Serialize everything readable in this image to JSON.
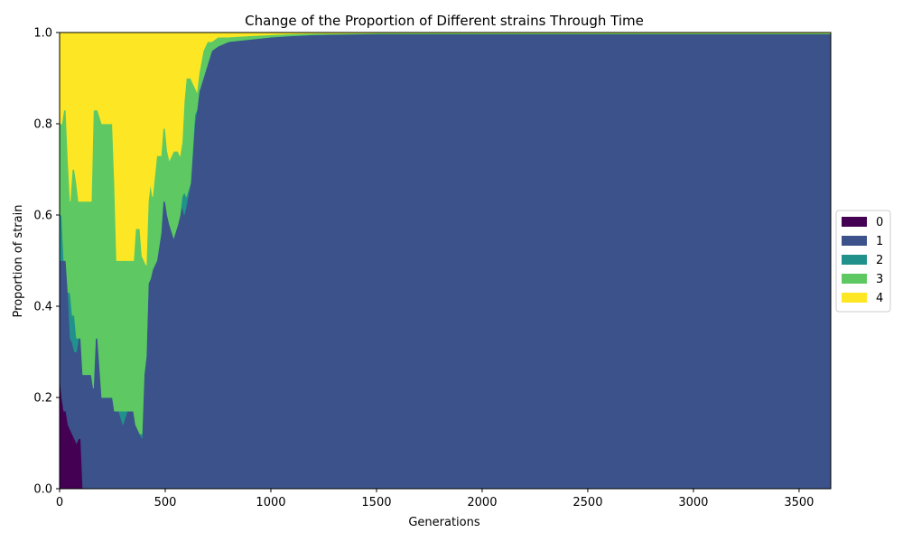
{
  "chart_data": {
    "type": "area",
    "title": "Change of the Proportion of Different strains Through Time",
    "xlabel": "Generations",
    "ylabel": "Proportion of strain",
    "xlim": [
      0,
      3650
    ],
    "ylim": [
      0,
      1.0
    ],
    "xticks": [
      0,
      500,
      1000,
      1500,
      2000,
      2500,
      3000,
      3500
    ],
    "yticks": [
      0.0,
      0.2,
      0.4,
      0.6,
      0.8,
      1.0
    ],
    "ytick_labels": [
      "0.0",
      "0.2",
      "0.4",
      "0.6",
      "0.8",
      "1.0"
    ],
    "grid": false,
    "stacked": true,
    "legend_position": "right",
    "x": [
      0,
      10,
      20,
      30,
      40,
      50,
      60,
      70,
      80,
      90,
      100,
      110,
      150,
      160,
      170,
      180,
      200,
      250,
      260,
      270,
      280,
      300,
      320,
      350,
      360,
      370,
      380,
      390,
      400,
      410,
      420,
      430,
      440,
      460,
      480,
      490,
      500,
      510,
      520,
      540,
      560,
      570,
      580,
      590,
      600,
      620,
      640,
      650,
      660,
      680,
      700,
      720,
      750,
      800,
      900,
      1000,
      1100,
      1200,
      1300,
      1500,
      1600,
      1800,
      2000,
      2500,
      3000,
      3500,
      3650
    ],
    "series": [
      {
        "name": "0",
        "color": "#440154",
        "values": [
          0.25,
          0.2,
          0.17,
          0.17,
          0.14,
          0.13,
          0.12,
          0.11,
          0.1,
          0.11,
          0.11,
          0,
          0,
          0,
          0,
          0,
          0,
          0,
          0,
          0,
          0,
          0,
          0,
          0,
          0,
          0,
          0,
          0,
          0,
          0,
          0,
          0,
          0,
          0,
          0,
          0,
          0,
          0,
          0,
          0,
          0,
          0,
          0,
          0,
          0,
          0,
          0,
          0,
          0,
          0,
          0,
          0,
          0,
          0,
          0,
          0,
          0,
          0,
          0,
          0,
          0,
          0,
          0,
          0,
          0,
          0,
          0
        ]
      },
      {
        "name": "1",
        "color": "#3b528b",
        "values": [
          0.25,
          0.3,
          0.33,
          0.33,
          0.29,
          0.2,
          0.2,
          0.19,
          0.2,
          0.22,
          0.22,
          0.25,
          0.25,
          0.22,
          0.33,
          0.33,
          0.2,
          0.2,
          0.17,
          0.17,
          0.17,
          0.14,
          0.17,
          0.17,
          0.14,
          0.13,
          0.12,
          0.11,
          0.25,
          0.29,
          0.45,
          0.46,
          0.48,
          0.5,
          0.56,
          0.63,
          0.63,
          0.6,
          0.58,
          0.55,
          0.58,
          0.6,
          0.62,
          0.6,
          0.62,
          0.67,
          0.8,
          0.83,
          0.87,
          0.9,
          0.93,
          0.96,
          0.97,
          0.98,
          0.985,
          0.99,
          0.993,
          0.995,
          0.996,
          0.997,
          0.997,
          0.997,
          0.997,
          0.997,
          0.997,
          0.997,
          0.997
        ]
      },
      {
        "name": "2",
        "color": "#21918c",
        "values": [
          0.1,
          0.1,
          0.0,
          0.0,
          0.0,
          0.1,
          0.06,
          0.08,
          0.03,
          0.0,
          0.0,
          0.0,
          0.0,
          0.0,
          0.0,
          0.0,
          0.0,
          0.0,
          0.0,
          0.0,
          0.0,
          0.03,
          0.0,
          0.0,
          0.0,
          0.0,
          0.0,
          0.01,
          0.0,
          0.0,
          0.0,
          0.0,
          0.0,
          0.0,
          0.0,
          0.0,
          0.0,
          0.0,
          0.0,
          0.0,
          0.0,
          0.0,
          0.02,
          0.05,
          0.02,
          0.0,
          0.02,
          0.0,
          0.0,
          0.0,
          0.0,
          0.0,
          0.0,
          0.0,
          0.0,
          0.0,
          0.0,
          0.0,
          0.0,
          0.0,
          0.0,
          0.0,
          0.0,
          0.0,
          0.0,
          0.0,
          0.0
        ]
      },
      {
        "name": "3",
        "color": "#5ec962",
        "values": [
          0.2,
          0.2,
          0.33,
          0.33,
          0.29,
          0.2,
          0.32,
          0.32,
          0.34,
          0.3,
          0.3,
          0.38,
          0.38,
          0.61,
          0.5,
          0.5,
          0.6,
          0.6,
          0.5,
          0.33,
          0.33,
          0.33,
          0.33,
          0.33,
          0.43,
          0.44,
          0.45,
          0.39,
          0.25,
          0.2,
          0.18,
          0.21,
          0.16,
          0.23,
          0.17,
          0.16,
          0.16,
          0.14,
          0.14,
          0.19,
          0.16,
          0.13,
          0.12,
          0.2,
          0.26,
          0.23,
          0.06,
          0.04,
          0.04,
          0.06,
          0.05,
          0.02,
          0.02,
          0.01,
          0.008,
          0.005,
          0.004,
          0.003,
          0.002,
          0.002,
          0.002,
          0.002,
          0.002,
          0.002,
          0.002,
          0.002,
          0.002
        ]
      },
      {
        "name": "4",
        "color": "#fde725",
        "values": [
          0.2,
          0.2,
          0.17,
          0.17,
          0.28,
          0.37,
          0.3,
          0.3,
          0.33,
          0.37,
          0.37,
          0.37,
          0.37,
          0.17,
          0.17,
          0.17,
          0.2,
          0.2,
          0.33,
          0.5,
          0.5,
          0.5,
          0.5,
          0.5,
          0.43,
          0.43,
          0.43,
          0.49,
          0.5,
          0.51,
          0.37,
          0.33,
          0.36,
          0.27,
          0.27,
          0.21,
          0.21,
          0.26,
          0.28,
          0.26,
          0.26,
          0.27,
          0.24,
          0.15,
          0.1,
          0.1,
          0.12,
          0.13,
          0.09,
          0.04,
          0.02,
          0.02,
          0.01,
          0.01,
          0.007,
          0.005,
          0.003,
          0.002,
          0.002,
          0.001,
          0.001,
          0.001,
          0.001,
          0.001,
          0.001,
          0.001,
          0.001
        ]
      }
    ]
  }
}
